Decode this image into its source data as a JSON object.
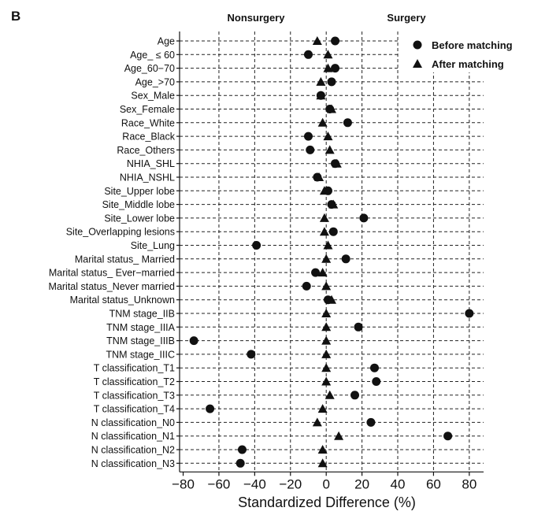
{
  "panel_label": "B",
  "header": {
    "left": "Nonsurgery",
    "right": "Surgery"
  },
  "legend": {
    "before": "Before matching",
    "after": "After matching"
  },
  "chart_data": {
    "type": "scatter",
    "xlabel": "Standardized Difference (%)",
    "xlim": [
      -82,
      88
    ],
    "xticks": [
      -80,
      -60,
      -40,
      -20,
      0,
      20,
      40,
      60,
      80
    ],
    "xtick_labels": [
      "−80",
      "−60",
      "−40",
      "−20",
      "0",
      "20",
      "40",
      "60",
      "80"
    ],
    "vertical_gridlines": [
      -60,
      -40,
      -20,
      0,
      20,
      40,
      60,
      80
    ],
    "legend_position": "top-right",
    "categories": [
      "Age",
      "Age_ ≤ 60",
      "Age_60−70",
      "Age_>70",
      "Sex_Male",
      "Sex_Female",
      "Race_White",
      "Race_Black",
      "Race_Others",
      "NHIA_SHL",
      "NHIA_NSHL",
      "Site_Upper lobe",
      "Site_Middle lobe",
      "Site_Lower lobe",
      "Site_Overlapping lesions",
      "Site_Lung",
      "Marital status_ Married",
      "Marital status_ Ever−married",
      "Marital status_Never married",
      "Marital status_Unknown",
      "TNM stage_IIB",
      "TNM stage_IIIA",
      "TNM stage_IIIB",
      "TNM stage_IIIC",
      "T classification_T1",
      "T classification_T2",
      "T classification_T3",
      "T classification_T4",
      "N classification_N0",
      "N classification_N1",
      "N classification_N2",
      "N classification_N3"
    ],
    "series": [
      {
        "name": "Before matching",
        "marker": "circle",
        "values": [
          5,
          -10,
          5,
          3,
          -3,
          2,
          12,
          -10,
          -9,
          5,
          -5,
          1,
          3,
          21,
          4,
          -39,
          11,
          -6,
          -11,
          1,
          80,
          18,
          -74,
          -42,
          27,
          28,
          16,
          -65,
          25,
          68,
          -47,
          -48
        ]
      },
      {
        "name": "After matching",
        "marker": "triangle",
        "values": [
          -5,
          1,
          1,
          -3,
          -3,
          3,
          -2,
          1,
          2,
          6,
          -4,
          -1,
          4,
          -1,
          -1,
          1,
          0,
          -2,
          0,
          3,
          0,
          0,
          0,
          0,
          0,
          0,
          2,
          -2,
          -5,
          7,
          -2,
          -2
        ]
      }
    ]
  }
}
